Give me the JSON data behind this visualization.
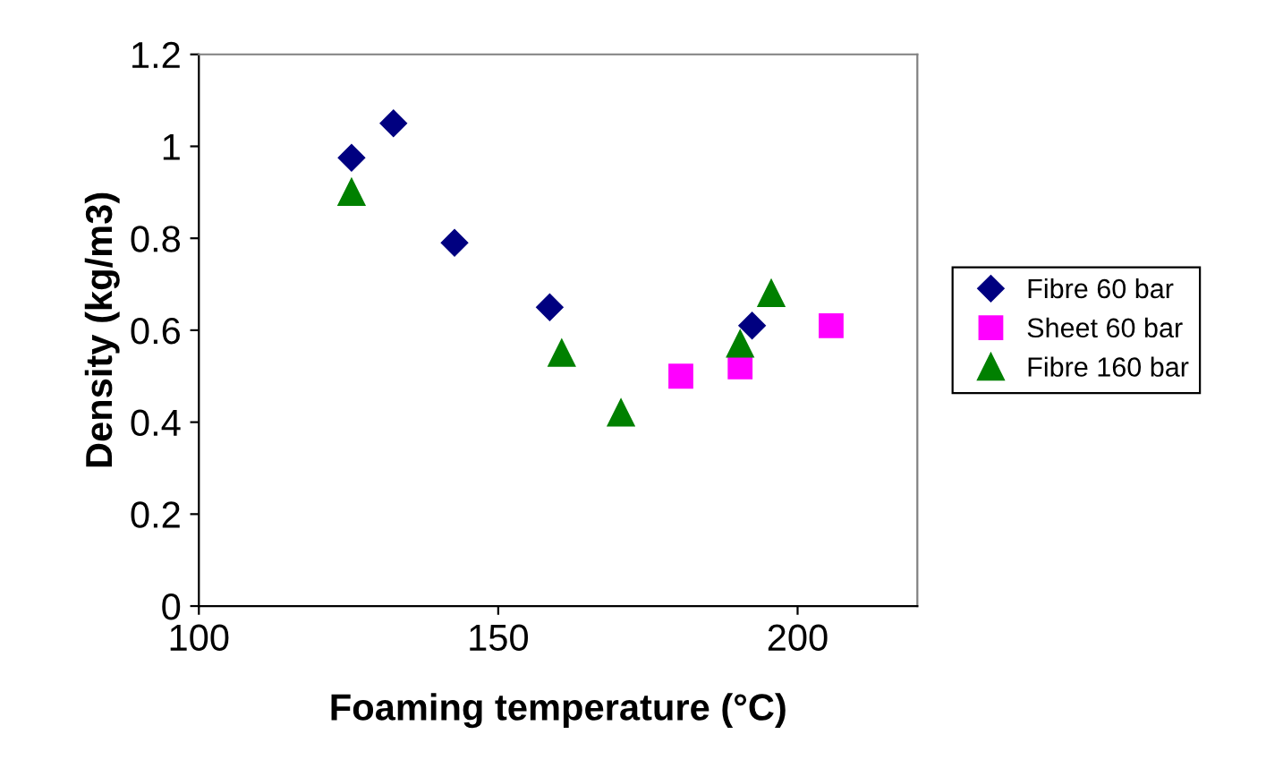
{
  "chart_data": {
    "type": "scatter",
    "xlabel": "Foaming temperature (°C)",
    "ylabel": "Density (kg/m3)",
    "xlim": [
      100,
      220
    ],
    "xticks": [
      100,
      150,
      200
    ],
    "ylim": [
      0,
      1.2
    ],
    "yticks": [
      0,
      0.2,
      0.4,
      0.6,
      0.8,
      1,
      1.2
    ],
    "grid": false,
    "legend": "right",
    "series": [
      {
        "name": "Fibre 60 bar",
        "color": "#000080",
        "marker": "diamond",
        "x": [
          125.5,
          132.5,
          142.7,
          158.6,
          192.4
        ],
        "values": [
          0.975,
          1.05,
          0.79,
          0.65,
          0.61
        ]
      },
      {
        "name": "Sheet 60 bar",
        "color": "#ff00ff",
        "marker": "square",
        "x": [
          180.5,
          190.4,
          205.6
        ],
        "values": [
          0.5,
          0.52,
          0.61
        ]
      },
      {
        "name": "Fibre 160 bar",
        "color": "#008000",
        "marker": "triangle",
        "x": [
          125.5,
          160.6,
          170.5,
          190.4,
          195.6
        ],
        "values": [
          0.9,
          0.55,
          0.42,
          0.57,
          0.68
        ]
      }
    ]
  }
}
